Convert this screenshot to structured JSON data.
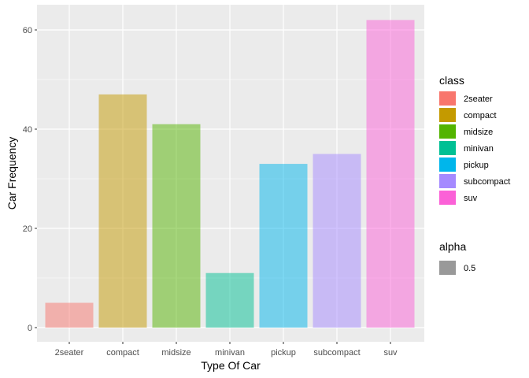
{
  "chart_data": {
    "type": "bar",
    "categories": [
      "2seater",
      "compact",
      "midsize",
      "minivan",
      "pickup",
      "subcompact",
      "suv"
    ],
    "values": [
      5,
      47,
      41,
      11,
      33,
      35,
      62
    ],
    "colors": [
      "#F8766D",
      "#C49A00",
      "#53B400",
      "#00C094",
      "#00B6EB",
      "#A58AFF",
      "#FB61D7"
    ],
    "bar_opacity": 0.5,
    "xlabel": "Type Of Car",
    "ylabel": "Car Frequency",
    "ylim": [
      0,
      65
    ],
    "yticks": [
      0,
      20,
      40,
      60
    ],
    "grid": true,
    "panel_background": "#EBEBEB",
    "grid_color": "#FFFFFF",
    "legend_placement": "right",
    "legend_class": {
      "title": "class",
      "items": [
        "2seater",
        "compact",
        "midsize",
        "minivan",
        "pickup",
        "subcompact",
        "suv"
      ]
    },
    "legend_alpha": {
      "title": "alpha",
      "items": [
        "0.5"
      ],
      "swatch_color": "#999999"
    }
  }
}
